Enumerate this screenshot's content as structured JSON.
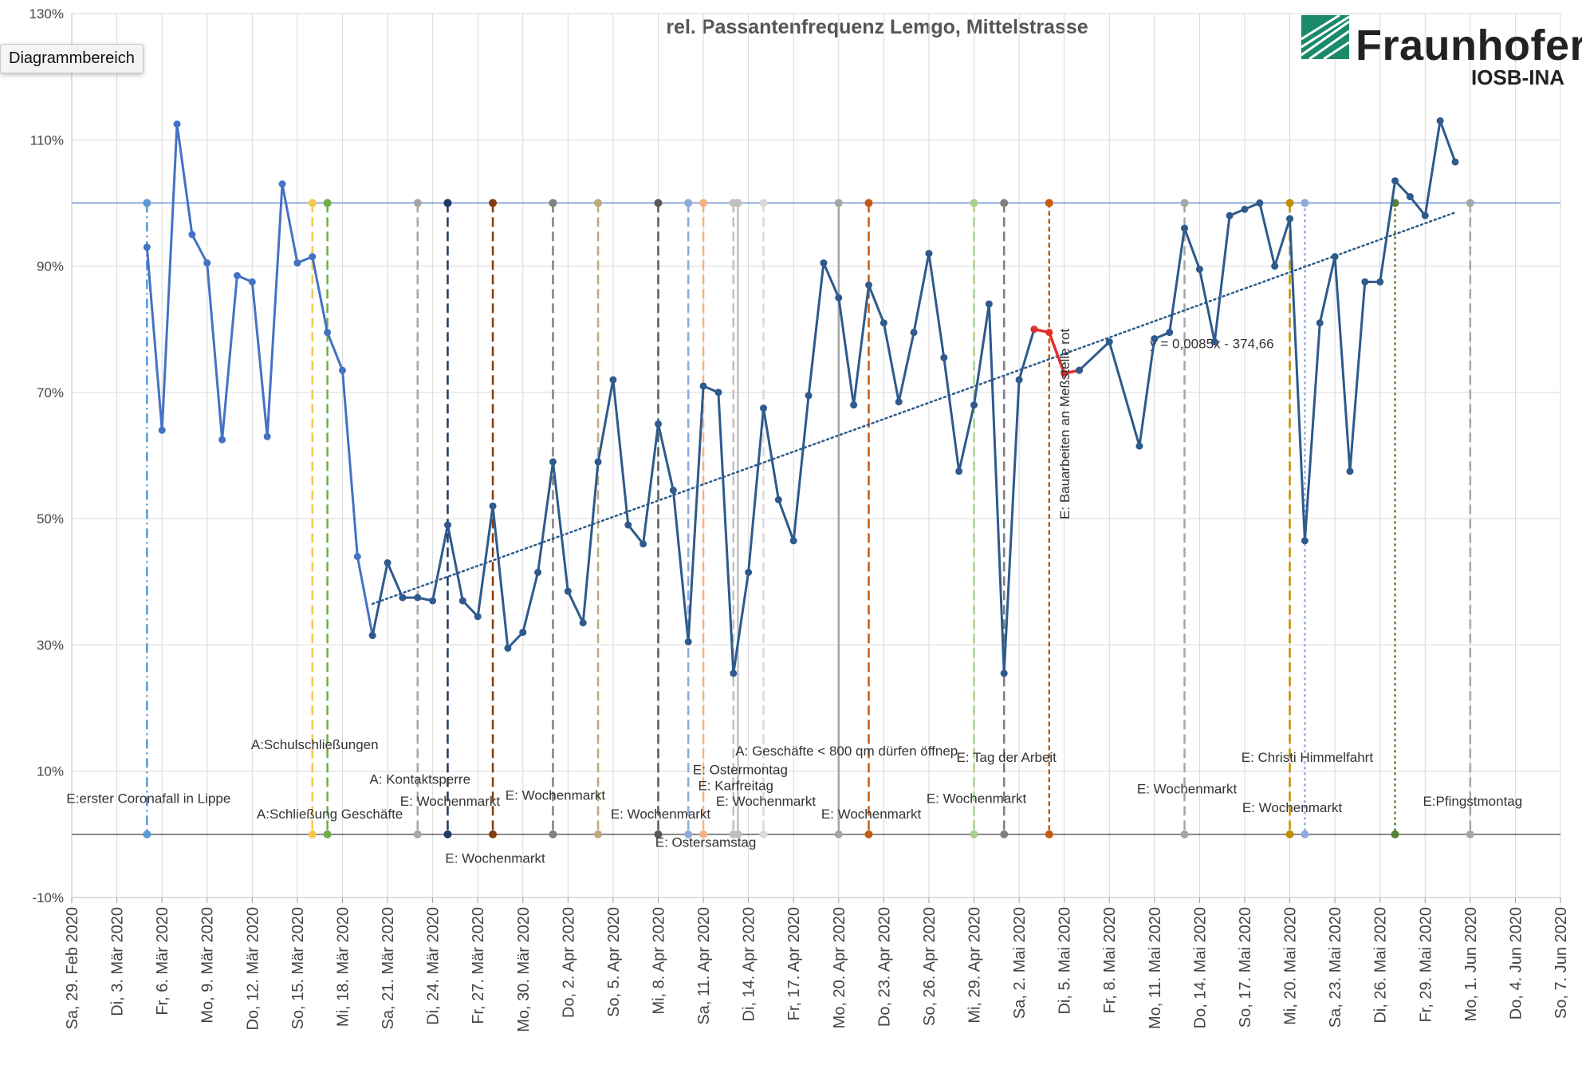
{
  "tooltip": "Diagrammbereich",
  "logo": {
    "name": "Fraunhofer",
    "sub": "IOSB-INA"
  },
  "colors": {
    "series_early": "#4472c4",
    "series_main": "#2e5a8c",
    "series_red": "#e0302a",
    "trend": "#2e5a8c",
    "reference": "#8eaadb",
    "grid": "#d9d9d9",
    "axis_text": "#444444",
    "logo_green": "#1a8a6a"
  },
  "chart_data": {
    "type": "line",
    "title": "rel. Passantenfrequenz Lemgo, Mittelstrasse",
    "ylim": [
      -10,
      130
    ],
    "yticks": [
      "-10%",
      "10%",
      "30%",
      "50%",
      "70%",
      "90%",
      "110%",
      "130%"
    ],
    "yticks_values": [
      -10,
      10,
      30,
      50,
      70,
      90,
      110,
      130
    ],
    "xlim": [
      0,
      99
    ],
    "xticks": [
      {
        "x": 0,
        "label": "Sa, 29. Feb 2020"
      },
      {
        "x": 3,
        "label": "Di, 3. Mär 2020"
      },
      {
        "x": 6,
        "label": "Fr, 6. Mär 2020"
      },
      {
        "x": 9,
        "label": "Mo, 9. Mär 2020"
      },
      {
        "x": 12,
        "label": "Do, 12. Mär 2020"
      },
      {
        "x": 15,
        "label": "So, 15. Mär 2020"
      },
      {
        "x": 18,
        "label": "Mi, 18. Mär 2020"
      },
      {
        "x": 21,
        "label": "Sa, 21. Mär 2020"
      },
      {
        "x": 24,
        "label": "Di, 24. Mär 2020"
      },
      {
        "x": 27,
        "label": "Fr, 27. Mär 2020"
      },
      {
        "x": 30,
        "label": "Mo, 30. Mär 2020"
      },
      {
        "x": 33,
        "label": "Do, 2. Apr 2020"
      },
      {
        "x": 36,
        "label": "So, 5. Apr 2020"
      },
      {
        "x": 39,
        "label": "Mi, 8. Apr 2020"
      },
      {
        "x": 42,
        "label": "Sa, 11. Apr 2020"
      },
      {
        "x": 45,
        "label": "Di, 14. Apr 2020"
      },
      {
        "x": 48,
        "label": "Fr, 17. Apr 2020"
      },
      {
        "x": 51,
        "label": "Mo, 20. Apr 2020"
      },
      {
        "x": 54,
        "label": "Do, 23. Apr 2020"
      },
      {
        "x": 57,
        "label": "So, 26. Apr 2020"
      },
      {
        "x": 60,
        "label": "Mi, 29. Apr 2020"
      },
      {
        "x": 63,
        "label": "Sa, 2. Mai 2020"
      },
      {
        "x": 66,
        "label": "Di, 5. Mai 2020"
      },
      {
        "x": 69,
        "label": "Fr, 8. Mai 2020"
      },
      {
        "x": 72,
        "label": "Mo, 11. Mai 2020"
      },
      {
        "x": 75,
        "label": "Do, 14. Mai 2020"
      },
      {
        "x": 78,
        "label": "So, 17. Mai 2020"
      },
      {
        "x": 81,
        "label": "Mi, 20. Mai 2020"
      },
      {
        "x": 84,
        "label": "Sa, 23. Mai 2020"
      },
      {
        "x": 87,
        "label": "Di, 26. Mai 2020"
      },
      {
        "x": 90,
        "label": "Fr, 29. Mai 2020"
      },
      {
        "x": 93,
        "label": "Mo, 1. Jun 2020"
      },
      {
        "x": 96,
        "label": "Do, 4. Jun 2020"
      },
      {
        "x": 99,
        "label": "So, 7. Jun 2020"
      }
    ],
    "reference_lines": [
      100,
      0
    ],
    "series": [
      {
        "name": "early",
        "color": "#4472c4",
        "points": [
          [
            5,
            93
          ],
          [
            6,
            64
          ],
          [
            7,
            112.5
          ],
          [
            8,
            95
          ],
          [
            9,
            90.5
          ],
          [
            10,
            62.5
          ],
          [
            11,
            88.5
          ],
          [
            12,
            87.5
          ],
          [
            13,
            63
          ],
          [
            14,
            103
          ],
          [
            15,
            90.5
          ],
          [
            16,
            91.5
          ],
          [
            17,
            79.5
          ],
          [
            18,
            73.5
          ],
          [
            19,
            44
          ],
          [
            20,
            31.5
          ]
        ]
      },
      {
        "name": "main",
        "color": "#2e5a8c",
        "points": [
          [
            20,
            31.5
          ],
          [
            21,
            43
          ],
          [
            22,
            37.5
          ],
          [
            23,
            37.5
          ],
          [
            24,
            37
          ],
          [
            25,
            49
          ],
          [
            26,
            37
          ],
          [
            27,
            34.5
          ],
          [
            28,
            52
          ],
          [
            29,
            29.5
          ],
          [
            30,
            32
          ],
          [
            31,
            41.5
          ],
          [
            32,
            59
          ],
          [
            33,
            38.5
          ],
          [
            34,
            33.5
          ],
          [
            35,
            59
          ],
          [
            36,
            72
          ],
          [
            37,
            49
          ],
          [
            38,
            46
          ],
          [
            39,
            65
          ],
          [
            40,
            54.5
          ],
          [
            41,
            30.5
          ],
          [
            42,
            71
          ],
          [
            43,
            70
          ],
          [
            44,
            25.5
          ],
          [
            45,
            41.5
          ],
          [
            46,
            67.5
          ],
          [
            47,
            53
          ],
          [
            48,
            46.5
          ],
          [
            49,
            69.5
          ],
          [
            50,
            90.5
          ],
          [
            51,
            85
          ],
          [
            52,
            68
          ],
          [
            53,
            87
          ],
          [
            54,
            81
          ],
          [
            55,
            68.5
          ],
          [
            56,
            79.5
          ],
          [
            57,
            92
          ],
          [
            58,
            75.5
          ],
          [
            59,
            57.5
          ],
          [
            60,
            68
          ],
          [
            61,
            84
          ],
          [
            62,
            25.5
          ],
          [
            63,
            72
          ],
          [
            64,
            80
          ]
        ]
      },
      {
        "name": "red",
        "color": "#e0302a",
        "points": [
          [
            64,
            80
          ],
          [
            65,
            79.5
          ],
          [
            66,
            73
          ],
          [
            67,
            73.5
          ]
        ]
      },
      {
        "name": "late",
        "color": "#2e5a8c",
        "points": [
          [
            67,
            73.5
          ],
          [
            69,
            78
          ],
          [
            71,
            61.5
          ],
          [
            72,
            78.5
          ],
          [
            73,
            79.5
          ],
          [
            74,
            96
          ],
          [
            75,
            89.5
          ],
          [
            76,
            78
          ],
          [
            77,
            98
          ],
          [
            78,
            99
          ],
          [
            79,
            100
          ],
          [
            80,
            90
          ],
          [
            81,
            97.5
          ],
          [
            82,
            46.5
          ],
          [
            83,
            81
          ],
          [
            84,
            91.5
          ],
          [
            85,
            57.5
          ],
          [
            86,
            87.5
          ],
          [
            87,
            87.5
          ],
          [
            88,
            103.5
          ],
          [
            89,
            101
          ],
          [
            90,
            98
          ],
          [
            91,
            113
          ],
          [
            92,
            106.5
          ]
        ]
      }
    ],
    "trendline": {
      "equation": "y = 0,0085x - 374,66",
      "x": [
        20,
        92
      ],
      "y": [
        36.5,
        98.5
      ]
    },
    "events": [
      {
        "x": 5,
        "color": "#5b9bd5",
        "dash": "12,5,2,5",
        "label": "E:erster Coronafall in Lippe",
        "label_y": 5
      },
      {
        "x": 16,
        "color": "#f2c94c",
        "dash": "12,6",
        "label": "A:Schulschließungen",
        "label_y": 13.5
      },
      {
        "x": 17,
        "color": "#70ad47",
        "dash": "12,6",
        "label": "A:Schließung Geschäfte",
        "label_y": 2.5
      },
      {
        "x": 23,
        "color": "#a6a6a6",
        "dash": "12,6",
        "label": "A: Kontaktsperre",
        "label_y": 8
      },
      {
        "x": 25,
        "color": "#203864",
        "dash": "12,6",
        "label": "E: Wochenmarkt",
        "label_y": 4.5
      },
      {
        "x": 28,
        "color": "#843c0c",
        "dash": "12,6",
        "label": "E: Wochenmarkt",
        "label_y": -4.5
      },
      {
        "x": 32,
        "color": "#808080",
        "dash": "12,6",
        "label": "E: Wochenmarkt",
        "label_y": 5.5
      },
      {
        "x": 35,
        "color": "#bfa97a",
        "dash": "12,6",
        "label": "",
        "label_y": 0
      },
      {
        "x": 39,
        "color": "#595959",
        "dash": "12,6",
        "label": "E: Wochenmarkt",
        "label_y": 2.5
      },
      {
        "x": 41,
        "color": "#8eaadb",
        "dash": "12,6",
        "label": "",
        "label_y": 0
      },
      {
        "x": 42,
        "color": "#f4b183",
        "dash": "12,6",
        "label": "E: Ostersamstag",
        "label_y": -2
      },
      {
        "x": 44,
        "color": "#c0c0c0",
        "dash": "12,6",
        "label": "E: Karfreitag",
        "label_y": 7
      },
      {
        "x": 44.3,
        "color": "#c0c0c0",
        "dash": "0",
        "label": "E: Ostermontag",
        "label_y": 9.5
      },
      {
        "x": 46,
        "color": "#d9d9d9",
        "dash": "12,6",
        "label": "E: Wochenmarkt",
        "label_y": 4.5
      },
      {
        "x": 51,
        "color": "#a6a6a6",
        "dash": "0",
        "label": "A: Geschäfte < 800 qm dürfen öffnep",
        "label_y": 12.5
      },
      {
        "x": 53,
        "color": "#c55a11",
        "dash": "12,6",
        "label": "E: Wochenmarkt",
        "label_y": 2.5
      },
      {
        "x": 60,
        "color": "#a9d18e",
        "dash": "12,6",
        "label": "E: Wochenmarkt",
        "label_y": 5
      },
      {
        "x": 62,
        "color": "#7f7f7f",
        "dash": "12,6",
        "label": "E: Tag der Arbeit",
        "label_y": 11.5
      },
      {
        "x": 65,
        "color": "#c55a11",
        "dash": "6,4",
        "label": "E: Bauarbeiten an Meßstelle rot",
        "label_y": 0
      },
      {
        "x": 74,
        "color": "#a6a6a6",
        "dash": "12,6",
        "label": "E: Wochenmarkt",
        "label_y": 6.5
      },
      {
        "x": 81,
        "color": "#bf9000",
        "dash": "12,6",
        "label": "E: Wochenmarkt",
        "label_y": 3.5
      },
      {
        "x": 82,
        "color": "#8eaadb",
        "dash": "3,4",
        "label": "E: Christi Himmelfahrt",
        "label_y": 11.5
      },
      {
        "x": 88,
        "color": "#548235",
        "dash": "3,4",
        "label": "",
        "label_y": 0
      },
      {
        "x": 93,
        "color": "#a6a6a6",
        "dash": "12,6",
        "label": "E:Pfingstmontag",
        "label_y": 4.5
      }
    ]
  }
}
